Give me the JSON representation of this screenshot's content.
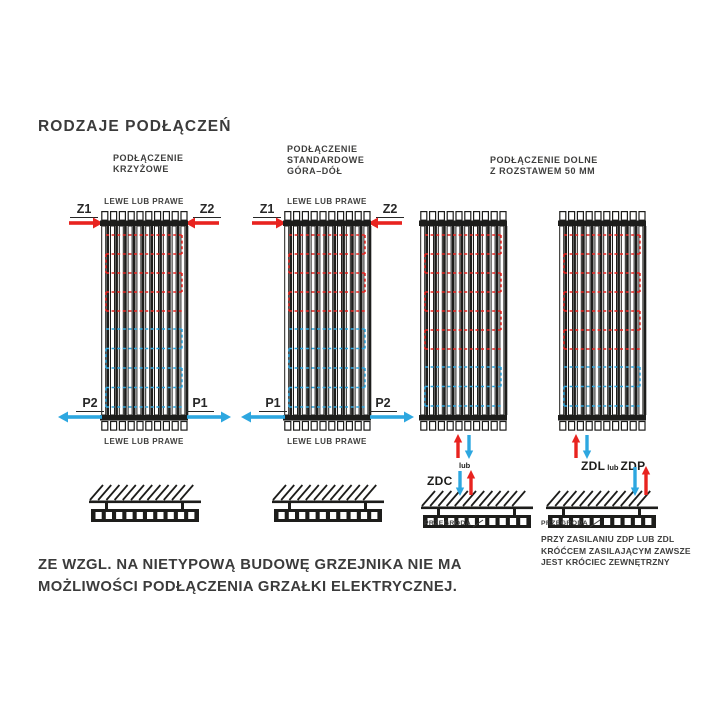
{
  "colors": {
    "red": "#e8231f",
    "blue": "#2da7e0",
    "dark": "#1d1d1b"
  },
  "title": "RODZAJE PODŁĄCZEŃ",
  "d1": {
    "title": "PODŁĄCZENIE\nKRZYŻOWE",
    "top_label": "LEWE LUB PRAWE",
    "bottom_label": "LEWE LUB PRAWE",
    "supply_left": "Z1",
    "supply_right": "Z2",
    "return_left": "P2",
    "return_right": "P1"
  },
  "d2": {
    "title": "PODŁĄCZENIE\nSTANDARDOWE\nGÓRA–DÓŁ",
    "top_label": "LEWE LUB PRAWE",
    "bottom_label": "LEWE LUB PRAWE",
    "supply_left": "Z1",
    "supply_right": "Z2",
    "return_left": "P1",
    "return_right": "P2"
  },
  "d3": {
    "title": "PODŁĄCZENIE DOLNE\nZ ROZSTAWEM 50 MM",
    "zdc": {
      "or_label": "lub",
      "connection_label": "ZDC",
      "partition_label": "PRZEGRODA"
    },
    "zdl": {
      "connection_label_1": "ZDL",
      "or_label": "lub",
      "connection_label_2": "ZDP",
      "partition_label": "PRZEGRODA",
      "note": "PRZY ZASILANIU ZDP LUB ZDL\nKRÓĆCEM ZASILAJĄCYM ZAWSZE\nJEST KRÓCIEC ZEWNĘTRZNY"
    }
  },
  "footer": "ZE WZGL. NA NIETYPOWĄ BUDOWĘ GRZEJNIKA NIE MA\nMOŻLIWOŚCI PODŁĄCZENIA GRZAŁKI ELEKTRYCZNEJ."
}
